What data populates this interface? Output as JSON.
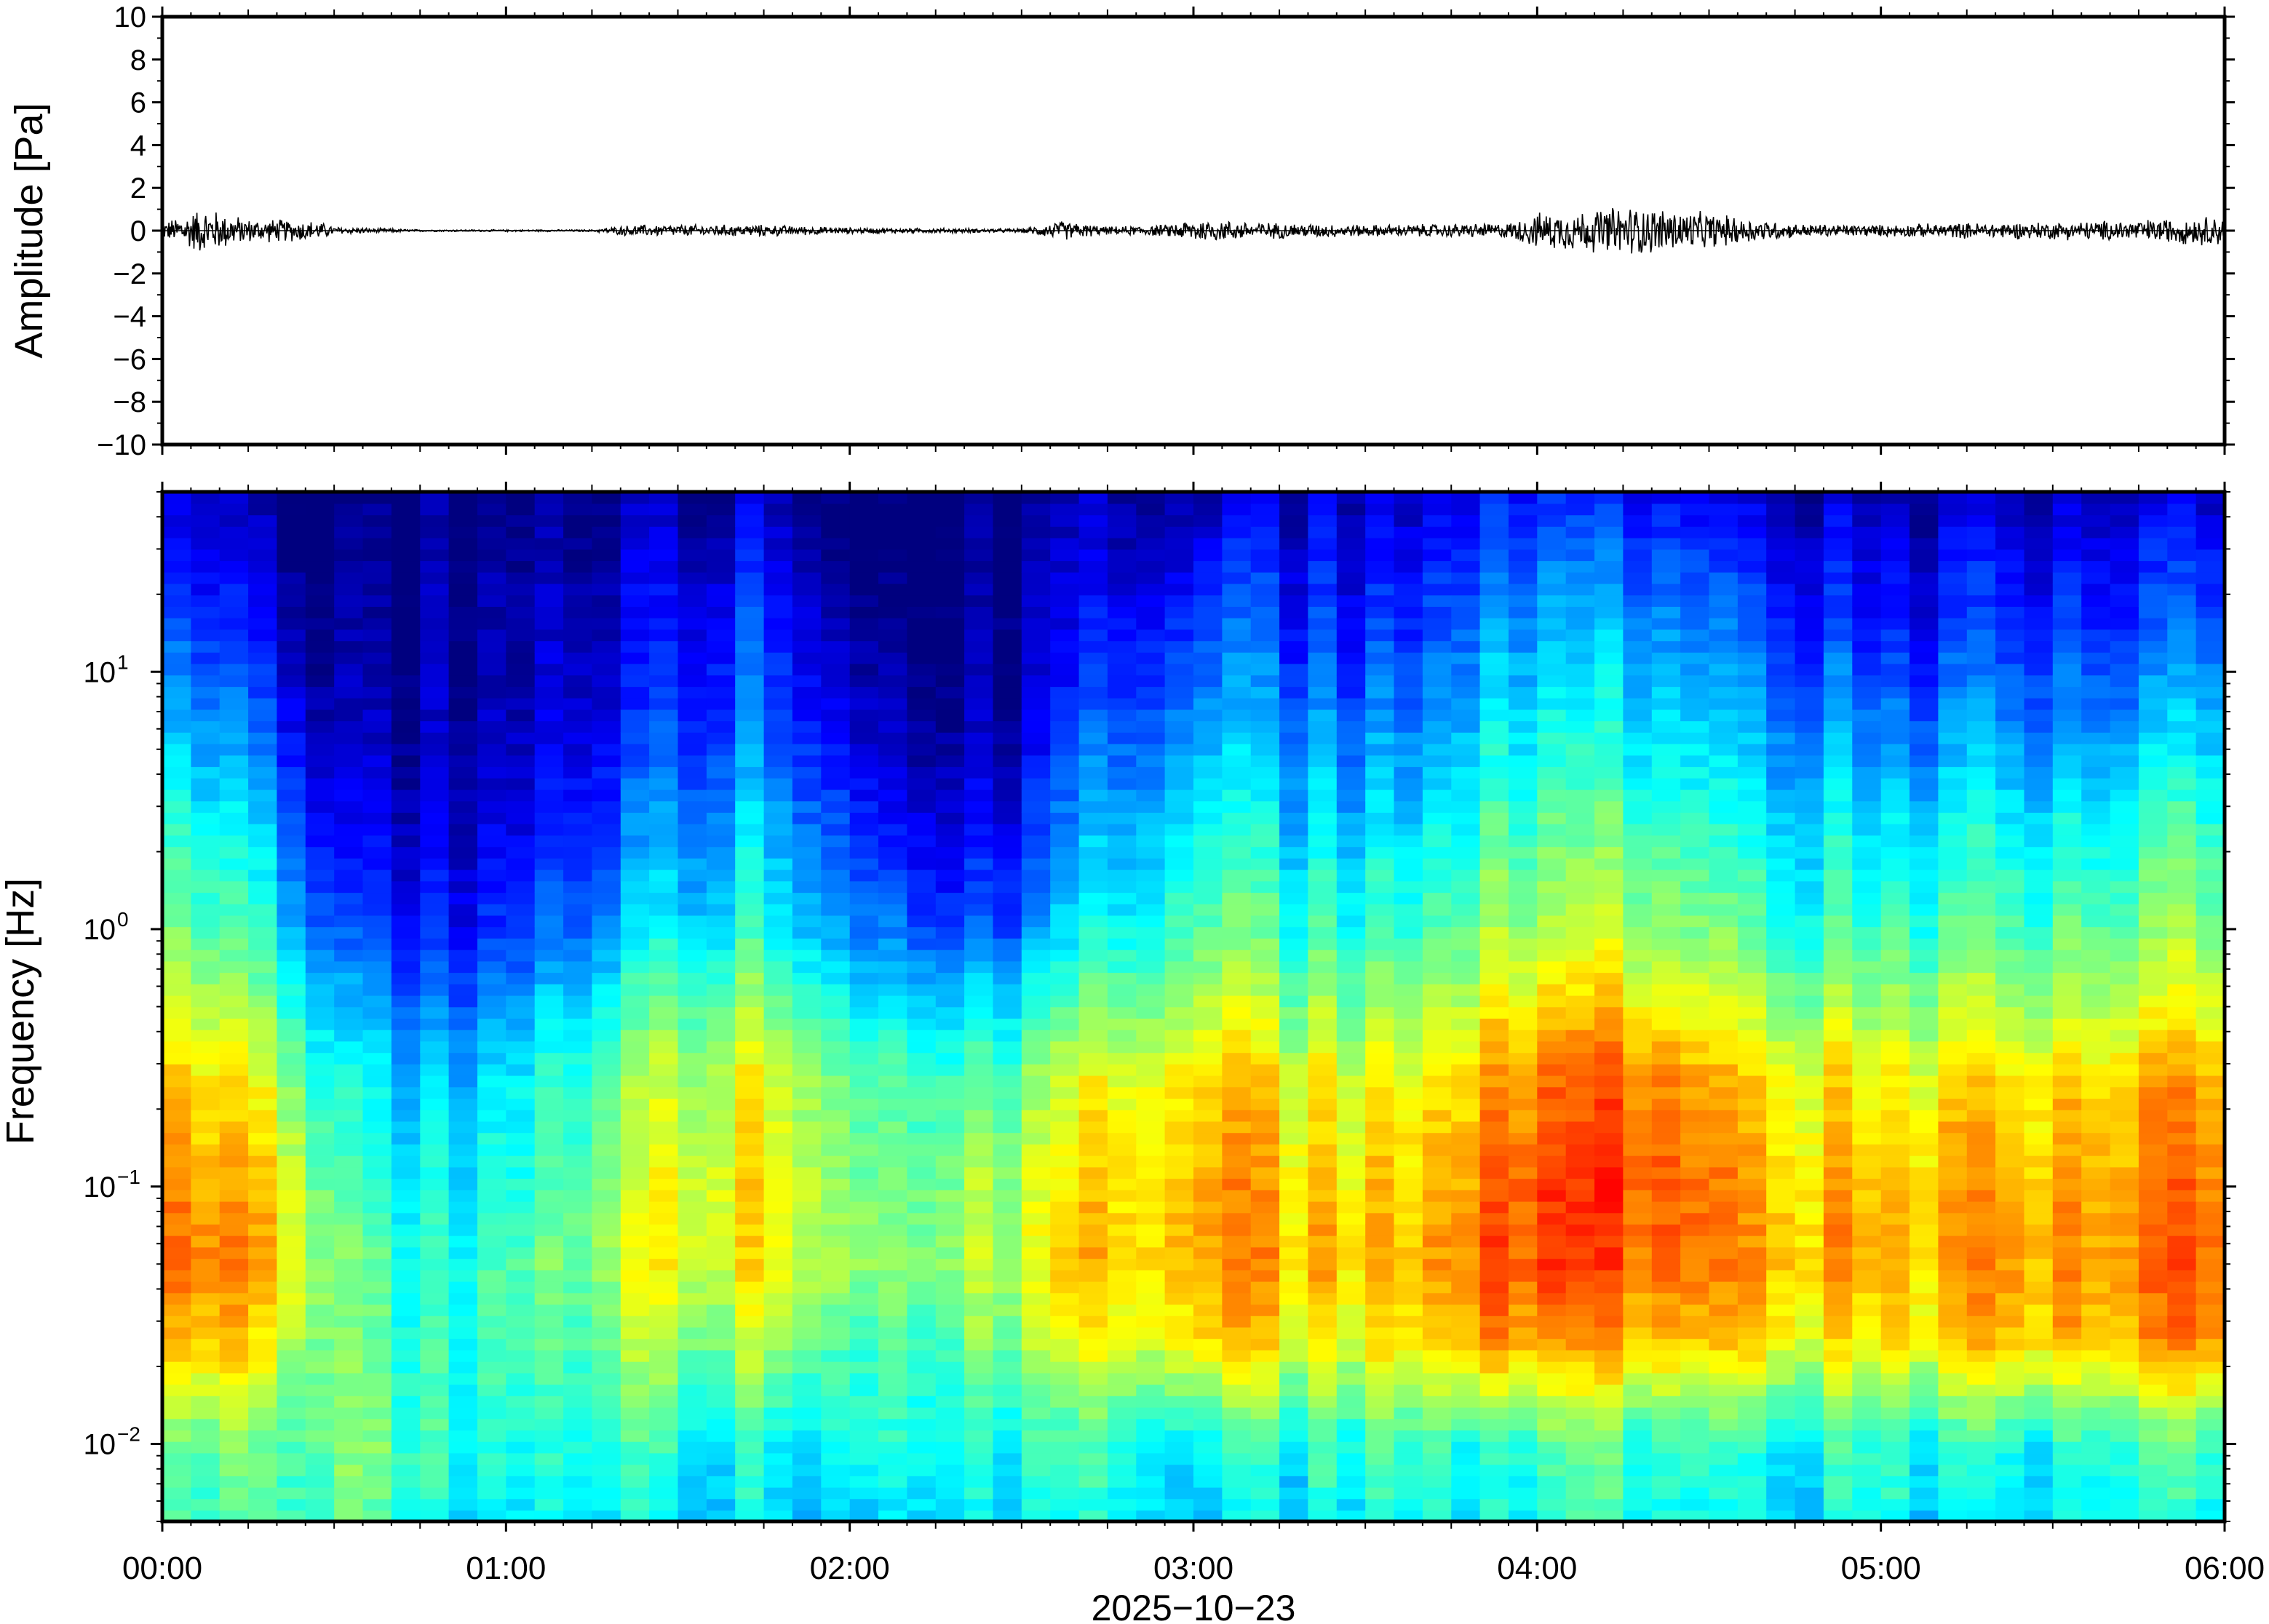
{
  "chart_data": [
    {
      "type": "line",
      "ylabel": "Amplitude [Pa]",
      "xlabel": "",
      "ylim": [
        -10,
        10
      ],
      "yticks": [
        10,
        8,
        6,
        4,
        2,
        0,
        -2,
        -4,
        -6,
        -8,
        -10
      ],
      "ytick_labels": [
        "10",
        "8",
        "6",
        "4",
        "2",
        "0",
        "−2",
        "−4",
        "−6",
        "−8",
        "−10"
      ],
      "xlim_minutes": [
        0,
        360
      ],
      "grid": false,
      "series": [
        {
          "x_time": [
            "00:00",
            "00:07",
            "00:10",
            "00:15",
            "00:20",
            "00:27",
            "00:30",
            "00:45",
            "01:00",
            "01:15",
            "01:22",
            "01:30",
            "01:45",
            "01:55",
            "02:00",
            "02:30",
            "02:37",
            "02:45",
            "02:55",
            "03:00",
            "03:15",
            "03:30",
            "03:45",
            "03:55",
            "04:00",
            "04:10",
            "04:15",
            "04:20",
            "04:30",
            "04:45",
            "05:00",
            "05:15",
            "05:30",
            "05:45",
            "06:00"
          ],
          "amplitude_envelope_pa": [
            0.4,
            1.2,
            1.0,
            0.6,
            0.6,
            0.5,
            0.2,
            0.05,
            0.05,
            0.05,
            0.3,
            0.3,
            0.3,
            0.2,
            0.15,
            0.1,
            0.5,
            0.2,
            0.3,
            0.6,
            0.4,
            0.3,
            0.35,
            0.4,
            0.9,
            1.1,
            1.3,
            1.2,
            0.9,
            0.35,
            0.3,
            0.4,
            0.45,
            0.55,
            0.8
          ],
          "color": "#000000"
        }
      ]
    },
    {
      "type": "heatmap",
      "ylabel": "Frequency [Hz]",
      "xlabel": "2025−10−23",
      "y_scale": "log",
      "ylim_hz": [
        0.005,
        50
      ],
      "yticks_hz": [
        10,
        1,
        0.1,
        0.01
      ],
      "ytick_labels": [
        {
          "base": "10",
          "exp": "1"
        },
        {
          "base": "10",
          "exp": "0"
        },
        {
          "base": "10",
          "exp": "−1"
        },
        {
          "base": "10",
          "exp": "−2"
        }
      ],
      "xticks": [
        "00:00",
        "01:00",
        "02:00",
        "03:00",
        "04:00",
        "05:00",
        "06:00"
      ],
      "colormap": "jet",
      "colormap_stops": [
        "#00007f",
        "#0000ff",
        "#007fff",
        "#00ffff",
        "#7fff7f",
        "#ffff00",
        "#ff7f00",
        "#ff0000"
      ],
      "time_minutes": [
        0,
        10,
        20,
        30,
        40,
        50,
        60,
        70,
        80,
        90,
        100,
        110,
        120,
        130,
        140,
        150,
        160,
        170,
        180,
        190,
        200,
        210,
        220,
        230,
        240,
        250,
        260,
        270,
        280,
        290,
        300,
        310,
        320,
        330,
        340,
        350,
        360
      ],
      "log10_freq": [
        -2.3,
        -2.0,
        -1.6,
        -1.3,
        -1.0,
        -0.6,
        -0.3,
        0.0,
        0.4,
        0.8,
        1.2,
        1.5,
        1.7
      ],
      "relative_power": [
        [
          0.45,
          0.5,
          0.55,
          0.55,
          0.5,
          0.4,
          0.4,
          0.4,
          0.45,
          0.4,
          0.4,
          0.4,
          0.4,
          0.45,
          0.4,
          0.4,
          0.4,
          0.45,
          0.4,
          0.4,
          0.4,
          0.45,
          0.45,
          0.4,
          0.45,
          0.5,
          0.45,
          0.45,
          0.4,
          0.4,
          0.45,
          0.4,
          0.4,
          0.4,
          0.45,
          0.45,
          0.45
        ],
        [
          0.5,
          0.55,
          0.55,
          0.6,
          0.55,
          0.45,
          0.45,
          0.45,
          0.5,
          0.45,
          0.45,
          0.45,
          0.5,
          0.5,
          0.45,
          0.45,
          0.45,
          0.5,
          0.45,
          0.45,
          0.45,
          0.5,
          0.5,
          0.45,
          0.5,
          0.55,
          0.5,
          0.5,
          0.45,
          0.45,
          0.5,
          0.45,
          0.45,
          0.45,
          0.5,
          0.5,
          0.5
        ],
        [
          0.75,
          0.78,
          0.7,
          0.6,
          0.5,
          0.45,
          0.5,
          0.5,
          0.6,
          0.62,
          0.6,
          0.62,
          0.55,
          0.55,
          0.55,
          0.58,
          0.65,
          0.7,
          0.78,
          0.75,
          0.7,
          0.7,
          0.75,
          0.8,
          0.82,
          0.82,
          0.8,
          0.78,
          0.75,
          0.7,
          0.72,
          0.75,
          0.78,
          0.78,
          0.8,
          0.82,
          0.85
        ],
        [
          0.85,
          0.85,
          0.8,
          0.6,
          0.5,
          0.45,
          0.5,
          0.55,
          0.65,
          0.7,
          0.7,
          0.72,
          0.65,
          0.62,
          0.62,
          0.65,
          0.75,
          0.8,
          0.85,
          0.82,
          0.78,
          0.78,
          0.8,
          0.88,
          0.92,
          0.92,
          0.9,
          0.88,
          0.82,
          0.8,
          0.8,
          0.82,
          0.82,
          0.82,
          0.85,
          0.88,
          0.9
        ],
        [
          0.82,
          0.8,
          0.78,
          0.55,
          0.45,
          0.4,
          0.45,
          0.5,
          0.62,
          0.7,
          0.72,
          0.72,
          0.62,
          0.6,
          0.6,
          0.62,
          0.72,
          0.78,
          0.85,
          0.8,
          0.75,
          0.75,
          0.78,
          0.85,
          0.92,
          0.95,
          0.92,
          0.88,
          0.8,
          0.78,
          0.78,
          0.8,
          0.8,
          0.8,
          0.82,
          0.85,
          0.88
        ],
        [
          0.75,
          0.72,
          0.68,
          0.48,
          0.4,
          0.35,
          0.4,
          0.48,
          0.58,
          0.65,
          0.68,
          0.68,
          0.58,
          0.55,
          0.52,
          0.55,
          0.65,
          0.72,
          0.8,
          0.75,
          0.7,
          0.7,
          0.72,
          0.78,
          0.85,
          0.9,
          0.88,
          0.82,
          0.75,
          0.72,
          0.72,
          0.75,
          0.75,
          0.75,
          0.78,
          0.8,
          0.82
        ],
        [
          0.65,
          0.62,
          0.55,
          0.38,
          0.3,
          0.25,
          0.3,
          0.38,
          0.48,
          0.55,
          0.58,
          0.58,
          0.48,
          0.45,
          0.4,
          0.42,
          0.52,
          0.6,
          0.68,
          0.62,
          0.58,
          0.58,
          0.6,
          0.68,
          0.75,
          0.78,
          0.75,
          0.7,
          0.62,
          0.6,
          0.6,
          0.62,
          0.62,
          0.62,
          0.65,
          0.68,
          0.7
        ],
        [
          0.55,
          0.52,
          0.45,
          0.25,
          0.18,
          0.15,
          0.18,
          0.25,
          0.35,
          0.42,
          0.45,
          0.45,
          0.35,
          0.3,
          0.22,
          0.25,
          0.38,
          0.48,
          0.58,
          0.52,
          0.48,
          0.48,
          0.5,
          0.58,
          0.62,
          0.65,
          0.62,
          0.58,
          0.52,
          0.5,
          0.5,
          0.52,
          0.52,
          0.52,
          0.55,
          0.58,
          0.6
        ],
        [
          0.45,
          0.42,
          0.35,
          0.15,
          0.1,
          0.08,
          0.1,
          0.18,
          0.25,
          0.32,
          0.35,
          0.35,
          0.25,
          0.18,
          0.12,
          0.15,
          0.28,
          0.38,
          0.48,
          0.42,
          0.38,
          0.38,
          0.4,
          0.48,
          0.52,
          0.55,
          0.52,
          0.48,
          0.42,
          0.4,
          0.4,
          0.42,
          0.42,
          0.42,
          0.45,
          0.48,
          0.5
        ],
        [
          0.32,
          0.3,
          0.22,
          0.08,
          0.05,
          0.04,
          0.05,
          0.1,
          0.15,
          0.22,
          0.25,
          0.25,
          0.15,
          0.08,
          0.05,
          0.06,
          0.18,
          0.28,
          0.35,
          0.32,
          0.28,
          0.28,
          0.3,
          0.38,
          0.42,
          0.45,
          0.42,
          0.38,
          0.32,
          0.3,
          0.28,
          0.3,
          0.3,
          0.3,
          0.32,
          0.35,
          0.38
        ],
        [
          0.2,
          0.18,
          0.12,
          0.04,
          0.02,
          0.02,
          0.03,
          0.06,
          0.1,
          0.15,
          0.18,
          0.18,
          0.08,
          0.04,
          0.02,
          0.03,
          0.1,
          0.18,
          0.25,
          0.22,
          0.18,
          0.18,
          0.2,
          0.28,
          0.32,
          0.35,
          0.32,
          0.28,
          0.22,
          0.18,
          0.15,
          0.18,
          0.18,
          0.18,
          0.2,
          0.22,
          0.25
        ],
        [
          0.12,
          0.1,
          0.06,
          0.02,
          0.01,
          0.01,
          0.01,
          0.03,
          0.06,
          0.1,
          0.12,
          0.12,
          0.04,
          0.02,
          0.01,
          0.01,
          0.05,
          0.1,
          0.15,
          0.14,
          0.12,
          0.12,
          0.14,
          0.2,
          0.24,
          0.26,
          0.24,
          0.2,
          0.15,
          0.12,
          0.1,
          0.12,
          0.12,
          0.12,
          0.14,
          0.15,
          0.18
        ],
        [
          0.06,
          0.05,
          0.03,
          0.01,
          0.0,
          0.0,
          0.0,
          0.01,
          0.03,
          0.05,
          0.06,
          0.06,
          0.02,
          0.01,
          0.0,
          0.0,
          0.02,
          0.05,
          0.08,
          0.08,
          0.07,
          0.07,
          0.08,
          0.12,
          0.16,
          0.18,
          0.16,
          0.12,
          0.08,
          0.06,
          0.05,
          0.06,
          0.06,
          0.06,
          0.07,
          0.08,
          0.1
        ]
      ]
    }
  ]
}
